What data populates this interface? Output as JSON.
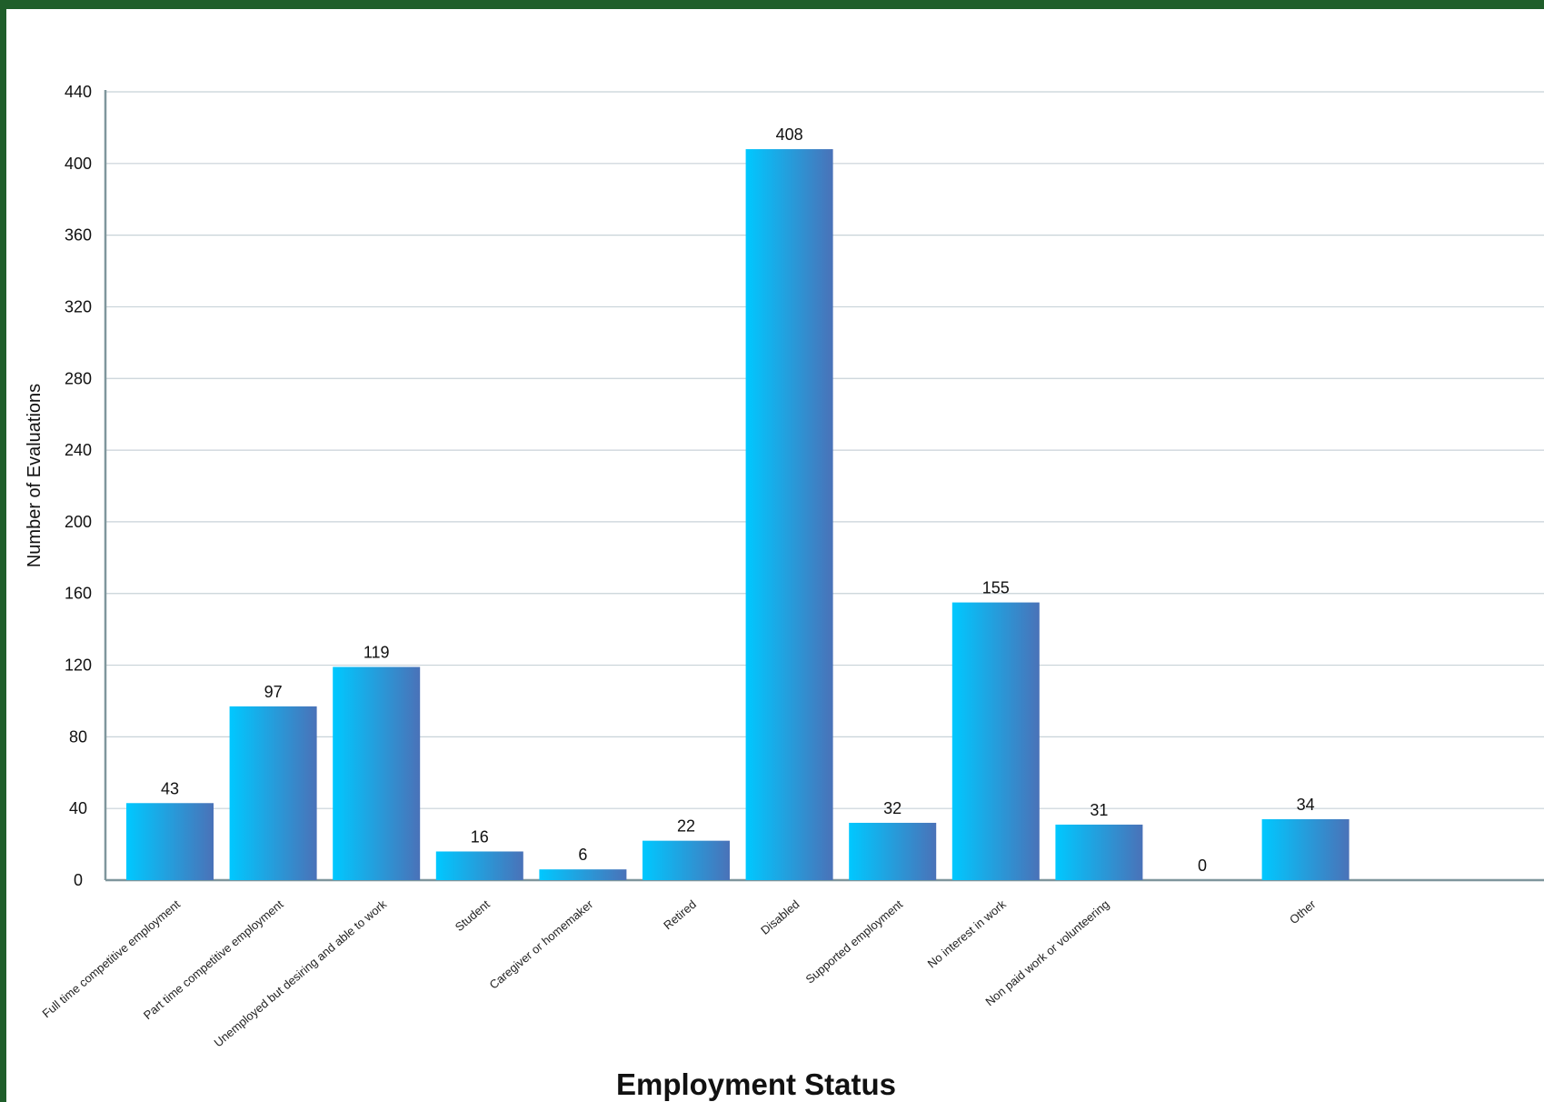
{
  "chart_data": {
    "type": "bar",
    "title": "",
    "xlabel": "Employment Status",
    "ylabel": "Number of Evaluations",
    "ylim": [
      0,
      440
    ],
    "yticks": [
      0,
      40,
      80,
      120,
      160,
      200,
      240,
      280,
      320,
      360,
      400,
      440
    ],
    "grid": true,
    "legend": "none",
    "categories": [
      "Full time competitive employment",
      "Part time competitive employment",
      "Unemployed but desiring and able to work",
      "Student",
      "Caregiver or homemaker",
      "Retired",
      "Disabled",
      "Supported employment",
      "No interest in work",
      "Non paid work or volunteering",
      "",
      "Other"
    ],
    "values": [
      43,
      97,
      119,
      16,
      6,
      22,
      408,
      32,
      155,
      31,
      0,
      34
    ],
    "colors": {
      "bar_light": "#00c8ff",
      "bar_dark": "#4a72b8",
      "frame": "#1f5e2a",
      "grid": "#c8d2d8",
      "axis": "#7f969c"
    }
  }
}
